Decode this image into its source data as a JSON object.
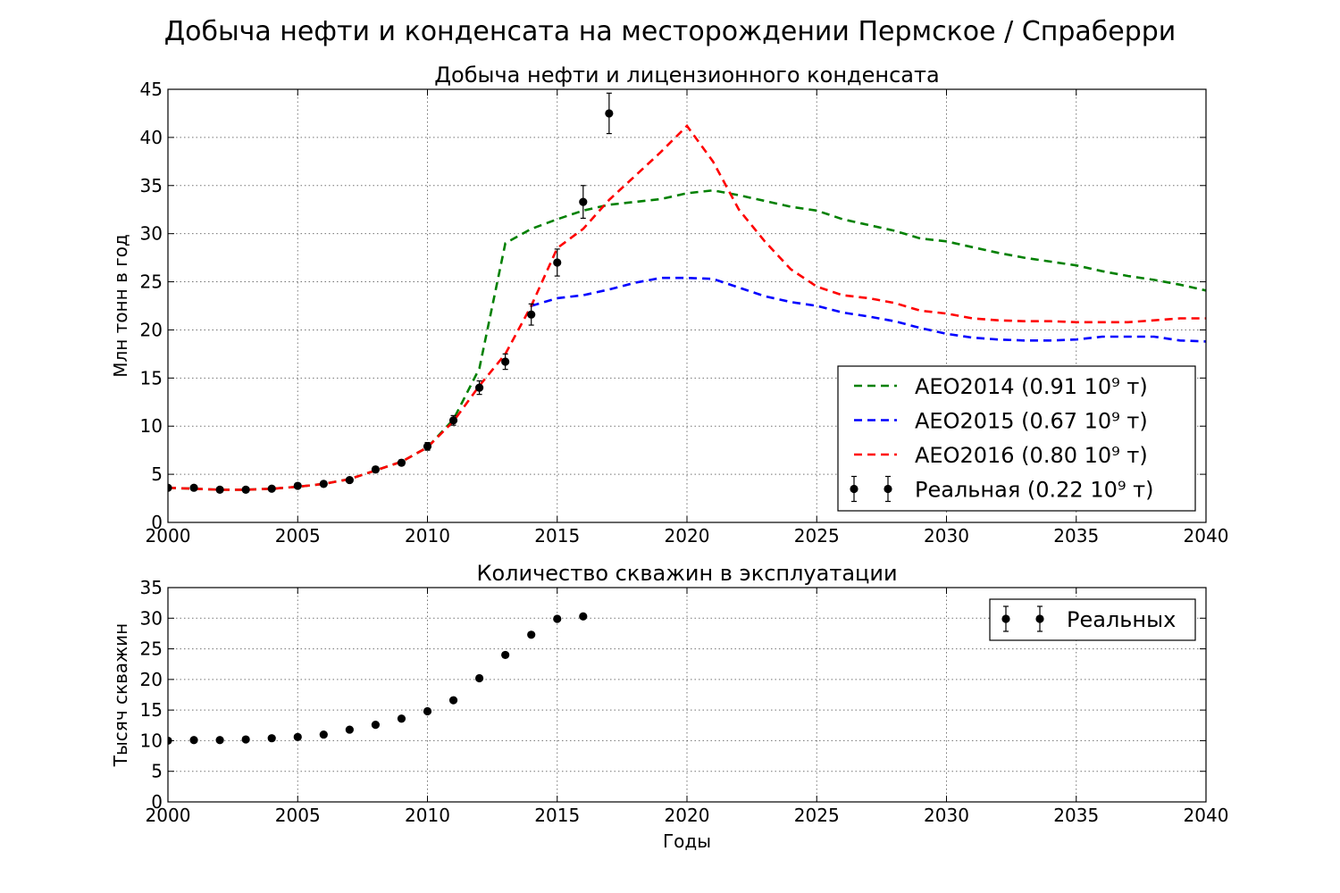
{
  "title": "Добыча нефти и конденсата на месторождении Пермское / Спраберри",
  "chart_data": [
    {
      "type": "line",
      "title": "Добыча нефти и лицензионного конденсата",
      "xlabel": "",
      "ylabel": "Млн тонн в год",
      "xlim": [
        2000,
        2040
      ],
      "ylim": [
        0,
        45
      ],
      "xticks": [
        "2000",
        "2005",
        "2010",
        "2015",
        "2020",
        "2025",
        "2030",
        "2035",
        "2040"
      ],
      "yticks": [
        "0",
        "5",
        "10",
        "15",
        "20",
        "25",
        "30",
        "35",
        "40",
        "45"
      ],
      "grid": true,
      "legend_position": "lower-right",
      "series": [
        {
          "name": "AEO2014 (0.91 10⁹ т)",
          "style": "dashed",
          "color": "#008000",
          "x": [
            2000,
            2001,
            2002,
            2003,
            2004,
            2005,
            2006,
            2007,
            2008,
            2009,
            2010,
            2011,
            2012,
            2013,
            2014,
            2015,
            2016,
            2017,
            2018,
            2019,
            2020,
            2021,
            2022,
            2023,
            2024,
            2025,
            2026,
            2027,
            2028,
            2029,
            2030,
            2031,
            2032,
            2033,
            2034,
            2035,
            2036,
            2037,
            2038,
            2039,
            2040
          ],
          "y": [
            3.6,
            3.5,
            3.4,
            3.4,
            3.5,
            3.7,
            4.0,
            4.5,
            5.4,
            6.3,
            7.8,
            10.7,
            16.0,
            29.0,
            30.5,
            31.5,
            32.4,
            33.0,
            33.3,
            33.6,
            34.2,
            34.5,
            34.0,
            33.4,
            32.8,
            32.4,
            31.5,
            30.9,
            30.3,
            29.5,
            29.2,
            28.6,
            28.0,
            27.5,
            27.1,
            26.7,
            26.1,
            25.6,
            25.2,
            24.7,
            24.1
          ]
        },
        {
          "name": "AEO2015 (0.67 10⁹ т)",
          "style": "dashed",
          "color": "#0000ff",
          "x": [
            2014,
            2015,
            2016,
            2017,
            2018,
            2019,
            2020,
            2021,
            2022,
            2023,
            2024,
            2025,
            2026,
            2027,
            2028,
            2029,
            2030,
            2031,
            2032,
            2033,
            2034,
            2035,
            2036,
            2037,
            2038,
            2039,
            2040
          ],
          "y": [
            22.5,
            23.3,
            23.6,
            24.2,
            24.9,
            25.4,
            25.4,
            25.3,
            24.4,
            23.5,
            22.9,
            22.5,
            21.8,
            21.4,
            20.9,
            20.2,
            19.6,
            19.2,
            19.0,
            18.9,
            18.9,
            19.0,
            19.3,
            19.3,
            19.3,
            18.9,
            18.8
          ]
        },
        {
          "name": "AEO2016 (0.80 10⁹ т)",
          "style": "dashed",
          "color": "#ff0000",
          "x": [
            2000,
            2001,
            2002,
            2003,
            2004,
            2005,
            2006,
            2007,
            2008,
            2009,
            2010,
            2011,
            2012,
            2013,
            2014,
            2015,
            2016,
            2017,
            2018,
            2019,
            2020,
            2021,
            2022,
            2023,
            2024,
            2025,
            2026,
            2027,
            2028,
            2029,
            2030,
            2031,
            2032,
            2033,
            2034,
            2035,
            2036,
            2037,
            2038,
            2039,
            2040
          ],
          "y": [
            3.6,
            3.5,
            3.4,
            3.4,
            3.5,
            3.7,
            4.0,
            4.5,
            5.4,
            6.3,
            7.8,
            10.5,
            14.2,
            17.5,
            22.5,
            28.5,
            30.5,
            33.5,
            36.0,
            38.5,
            41.2,
            37.5,
            32.5,
            29.2,
            26.3,
            24.5,
            23.6,
            23.3,
            22.8,
            22.0,
            21.7,
            21.2,
            21.0,
            20.9,
            20.9,
            20.8,
            20.8,
            20.8,
            21.0,
            21.2,
            21.2
          ]
        },
        {
          "name": "Реальная (0.22 10⁹ т)",
          "style": "points-errorbar",
          "color": "#000000",
          "x": [
            2000,
            2001,
            2002,
            2003,
            2004,
            2005,
            2006,
            2007,
            2008,
            2009,
            2010,
            2011,
            2012,
            2013,
            2014,
            2015,
            2016,
            2017
          ],
          "y": [
            3.6,
            3.6,
            3.4,
            3.4,
            3.5,
            3.8,
            4.0,
            4.4,
            5.5,
            6.2,
            7.9,
            10.6,
            14.0,
            16.7,
            21.6,
            27.0,
            33.3,
            42.5
          ],
          "yerr": [
            0.2,
            0.2,
            0.2,
            0.2,
            0.2,
            0.2,
            0.2,
            0.2,
            0.3,
            0.3,
            0.4,
            0.5,
            0.7,
            0.8,
            1.1,
            1.4,
            1.7,
            2.1
          ]
        }
      ]
    },
    {
      "type": "scatter",
      "title": "Количество скважин в эксплуатации",
      "xlabel": "Годы",
      "ylabel": "Тысяч скважин",
      "xlim": [
        2000,
        2040
      ],
      "ylim": [
        0,
        35
      ],
      "xticks": [
        "2000",
        "2005",
        "2010",
        "2015",
        "2020",
        "2025",
        "2030",
        "2035",
        "2040"
      ],
      "yticks": [
        "0",
        "5",
        "10",
        "15",
        "20",
        "25",
        "30",
        "35"
      ],
      "grid": true,
      "legend_position": "upper-right",
      "series": [
        {
          "name": "Реальных",
          "style": "points-errorbar",
          "color": "#000000",
          "x": [
            2000,
            2001,
            2002,
            2003,
            2004,
            2005,
            2006,
            2007,
            2008,
            2009,
            2010,
            2011,
            2012,
            2013,
            2014,
            2015,
            2016
          ],
          "y": [
            10.0,
            10.1,
            10.1,
            10.2,
            10.4,
            10.6,
            11.0,
            11.8,
            12.6,
            13.6,
            14.8,
            16.6,
            20.2,
            24.0,
            27.3,
            29.9,
            30.3
          ]
        }
      ]
    }
  ]
}
